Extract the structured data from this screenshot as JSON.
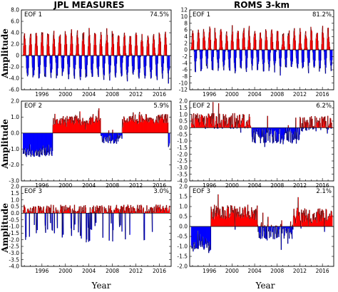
{
  "figure": {
    "column_titles": [
      "JPL MEASURES",
      "ROMS 3-km"
    ],
    "ylabel": "Amplitude",
    "xlabel": "Year",
    "colors": {
      "positive": "#ff0000",
      "negative": "#0000ff",
      "line": "#000000"
    }
  },
  "chart_data": [
    {
      "type": "bar",
      "panel": "JPL MEASURES",
      "label": "EOF 1",
      "variance": "74.5%",
      "x_range": [
        1992.5,
        2018
      ],
      "x_ticks": [
        "1996",
        "2000",
        "2004",
        "2008",
        "2012",
        "2016"
      ],
      "ylim": [
        -6,
        8
      ],
      "y_ticks": [
        "-6.0",
        "-4.0",
        "-2.0",
        "0",
        "2.0",
        "4.0",
        "6.0",
        "8.0"
      ],
      "grid": false,
      "series": {
        "mean": 0,
        "seasonal_amplitude": 4.2,
        "noise": 0.4,
        "trend": 0,
        "kind": "seasonal"
      }
    },
    {
      "type": "bar",
      "panel": "ROMS 3-km",
      "label": "EOF 1",
      "variance": "81.2%",
      "x_range": [
        1992.5,
        2018
      ],
      "x_ticks": [
        "1996",
        "2000",
        "2004",
        "2008",
        "2012",
        "2016"
      ],
      "ylim": [
        -12,
        12
      ],
      "y_ticks": [
        "-12",
        "-10",
        "-8",
        "-6",
        "-4",
        "-2",
        "0",
        "2",
        "4",
        "6",
        "8",
        "10",
        "12"
      ],
      "grid": false,
      "series": {
        "mean": 0,
        "seasonal_amplitude": 6.5,
        "noise": 1.0,
        "trend": 0,
        "kind": "seasonal"
      }
    },
    {
      "type": "bar",
      "panel": "JPL MEASURES",
      "label": "EOF 2",
      "variance": "5.9%",
      "x_range": [
        1992.5,
        2018
      ],
      "x_ticks": [
        "1996",
        "2000",
        "2004",
        "2008",
        "2012",
        "2016"
      ],
      "ylim": [
        -3,
        2
      ],
      "y_ticks": [
        "-3.0",
        "-2.0",
        "-1.0",
        "0.0",
        "1.0",
        "2.0"
      ],
      "grid": false,
      "series": {
        "kind": "segments",
        "segments": [
          {
            "from": 1992.5,
            "to": 1997.8,
            "level": -1.2
          },
          {
            "from": 1997.8,
            "to": 2006.0,
            "level": 0.8
          },
          {
            "from": 2006.0,
            "to": 2009.6,
            "level": -0.4
          },
          {
            "from": 2009.6,
            "to": 2017.5,
            "level": 0.9
          },
          {
            "from": 2017.5,
            "to": 2018.0,
            "level": -0.6
          }
        ],
        "noise": 0.3
      }
    },
    {
      "type": "bar",
      "panel": "ROMS 3-km",
      "label": "EOF 2",
      "variance": "6.2%",
      "x_range": [
        1992.5,
        2018
      ],
      "x_ticks": [
        "1996",
        "2000",
        "2004",
        "2008",
        "2012",
        "2016"
      ],
      "ylim": [
        -4,
        2
      ],
      "y_ticks": [
        "-4.0",
        "-3.5",
        "-3.0",
        "-2.5",
        "-2.0",
        "-1.5",
        "-1.0",
        "-0.5",
        "0.0",
        "0.5",
        "1.0",
        "1.5",
        "2.0"
      ],
      "grid": false,
      "series": {
        "kind": "segments",
        "segments": [
          {
            "from": 1992.5,
            "to": 2003.5,
            "level": 0.5
          },
          {
            "from": 2003.5,
            "to": 2012.0,
            "level": -0.6
          },
          {
            "from": 2012.0,
            "to": 2018.0,
            "level": 0.3
          }
        ],
        "noise": 0.6
      }
    },
    {
      "type": "bar",
      "panel": "JPL MEASURES",
      "label": "EOF 3",
      "variance": "3.0%",
      "x_range": [
        1992.5,
        2018
      ],
      "x_ticks": [
        "1996",
        "2000",
        "2004",
        "2008",
        "2012",
        "2016"
      ],
      "ylim": [
        -4,
        2
      ],
      "y_ticks": [
        "-4.0",
        "-3.5",
        "-3.0",
        "-2.5",
        "-2.0",
        "-1.5",
        "-1.0",
        "-0.5",
        "0.0",
        "0.5",
        "1.0",
        "1.5",
        "2.0"
      ],
      "grid": false,
      "series": {
        "kind": "spiky",
        "mean": 0.3,
        "noise": 0.35,
        "neg_spike": 2.2
      }
    },
    {
      "type": "bar",
      "panel": "ROMS 3-km",
      "label": "EOF 3",
      "variance": "2.1%",
      "x_range": [
        1992.5,
        2018
      ],
      "x_ticks": [
        "1996",
        "2000",
        "2004",
        "2008",
        "2012",
        "2016"
      ],
      "ylim": [
        -2,
        2
      ],
      "y_ticks": [
        "-2.0",
        "-1.5",
        "-1.0",
        "-0.5",
        "0.0",
        "0.5",
        "1.0",
        "1.5",
        "2.0"
      ],
      "grid": false,
      "series": {
        "kind": "segments",
        "segments": [
          {
            "from": 1992.5,
            "to": 1996.2,
            "level": -0.9
          },
          {
            "from": 1996.2,
            "to": 2004.5,
            "level": 0.7
          },
          {
            "from": 2004.5,
            "to": 2010.8,
            "level": -0.3
          },
          {
            "from": 2010.8,
            "to": 2018.0,
            "level": 0.55
          }
        ],
        "noise": 0.4
      }
    }
  ]
}
